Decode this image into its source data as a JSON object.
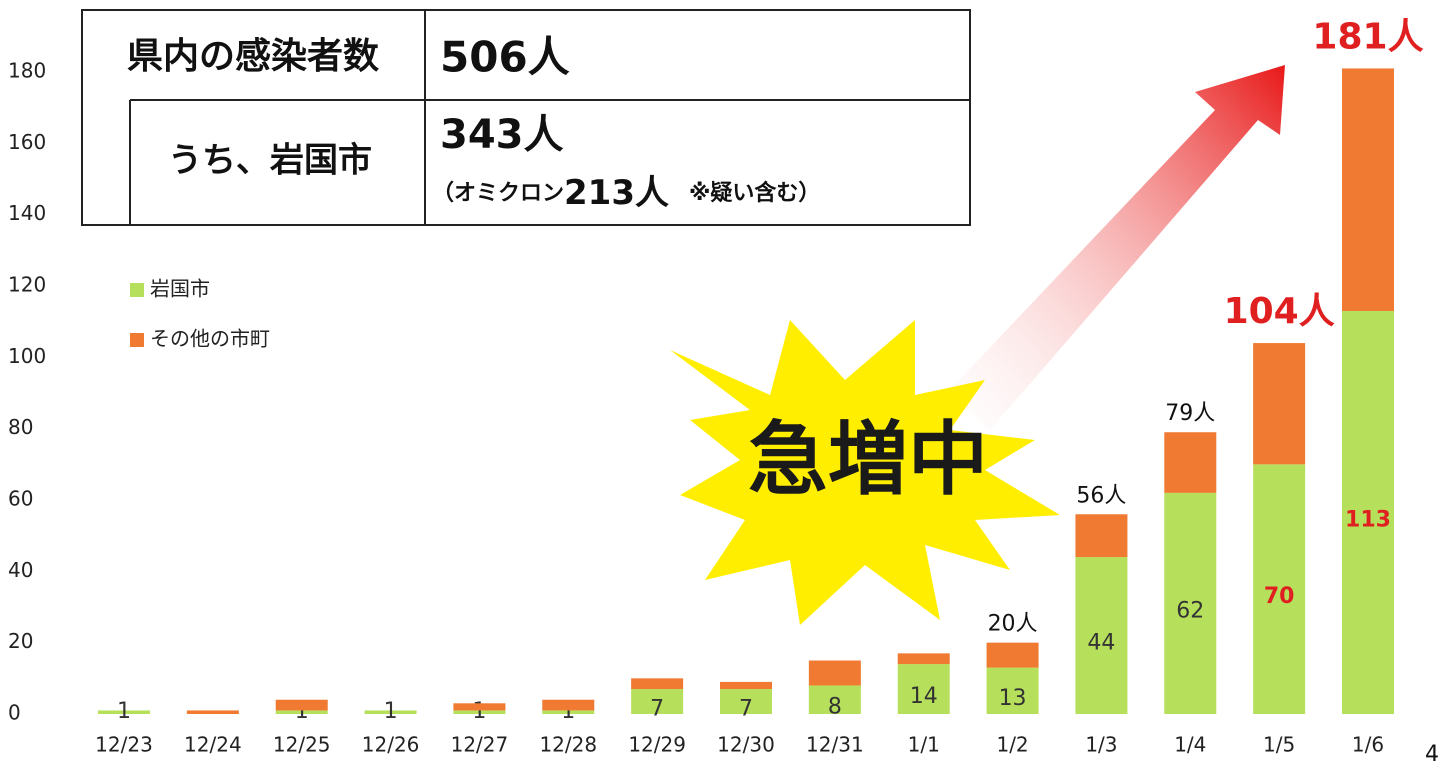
{
  "chart_data": {
    "type": "stacked-bar",
    "categories": [
      "12/23",
      "12/24",
      "12/25",
      "12/26",
      "12/27",
      "12/28",
      "12/29",
      "12/30",
      "12/31",
      "1/1",
      "1/2",
      "1/3",
      "1/4",
      "1/5",
      "1/6"
    ],
    "series": [
      {
        "name": "岩国市",
        "color": "#b6e05c",
        "values": [
          1,
          null,
          1,
          1,
          1,
          1,
          7,
          7,
          8,
          14,
          13,
          44,
          62,
          70,
          113
        ],
        "label_colors": [
          "#333",
          "#333",
          "#333",
          "#333",
          "#333",
          "#333",
          "#333",
          "#333",
          "#333",
          "#333",
          "#333",
          "#333",
          "#333",
          "#e02020",
          "#e02020"
        ]
      },
      {
        "name": "その他の市町",
        "color": "#f07a32",
        "values": [
          0,
          1,
          3,
          0,
          2,
          3,
          3,
          2,
          7,
          3,
          7,
          12,
          17,
          34,
          68
        ]
      }
    ],
    "ylim": [
      0,
      190
    ],
    "yticks": [
      0,
      20,
      40,
      60,
      80,
      100,
      120,
      140,
      160,
      180
    ],
    "annotations": [
      {
        "category": "1/2",
        "text": "20人",
        "value": 20,
        "color": "#111"
      },
      {
        "category": "1/3",
        "text": "56人",
        "value": 56,
        "color": "#111"
      },
      {
        "category": "1/4",
        "text": "79人",
        "value": 79,
        "color": "#111"
      },
      {
        "category": "1/5",
        "text": "104人",
        "value": 104,
        "color": "#e02020"
      },
      {
        "category": "1/6",
        "text": "181人",
        "value": 181,
        "color": "#e02020"
      }
    ],
    "summary": {
      "row1_label": "県内の感染者数",
      "row1_value": "506人",
      "row2_label": "うち、岩国市",
      "row2_value": "343人",
      "row2_note_a": "（オミクロン",
      "row2_note_b": "213人",
      "row2_note_c": "※疑い含む）"
    },
    "callout": "急増中",
    "page_number": "4"
  }
}
